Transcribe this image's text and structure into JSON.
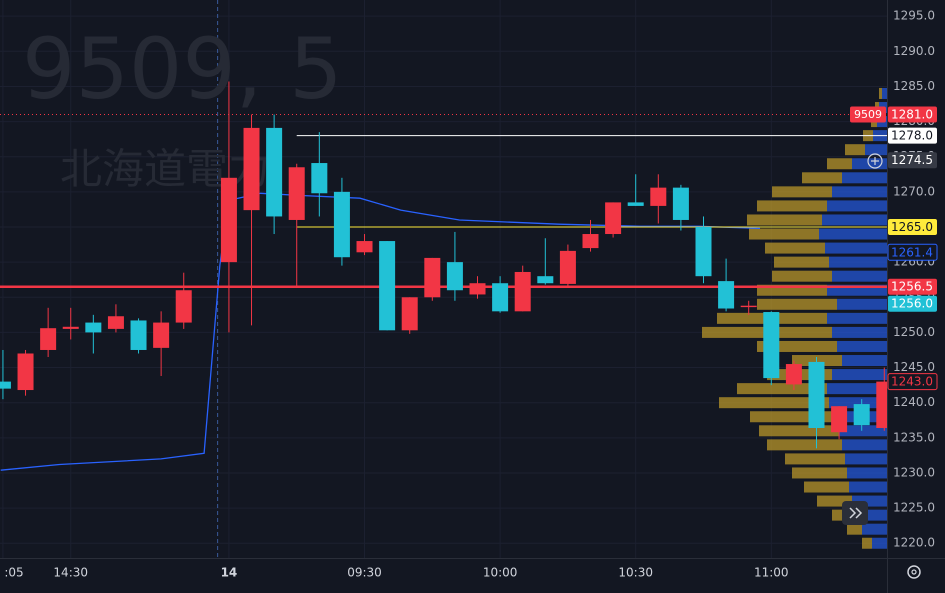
{
  "chart_data": {
    "type": "candlestick",
    "symbol": "9509",
    "watermark": [
      "9509, 5",
      "北海道電力"
    ],
    "xlim": [
      -0.13,
      39.12
    ],
    "ylim": [
      1217.9,
      1297.3
    ],
    "yticks": [
      {
        "value": 1220,
        "label": "1220.0"
      },
      {
        "value": 1225,
        "label": "1225.0"
      },
      {
        "value": 1230,
        "label": "1230.0"
      },
      {
        "value": 1235,
        "label": "1235.0"
      },
      {
        "value": 1240,
        "label": "1240.0"
      },
      {
        "value": 1245,
        "label": "1245.0"
      },
      {
        "value": 1250,
        "label": "1250.0"
      },
      {
        "value": 1255,
        "label": "1255.0"
      },
      {
        "value": 1260,
        "label": "1260.0"
      },
      {
        "value": 1265,
        "label": "1265.0"
      },
      {
        "value": 1270,
        "label": "1270.0"
      },
      {
        "value": 1275,
        "label": "1275.0"
      },
      {
        "value": 1280,
        "label": "1280.0"
      },
      {
        "value": 1285,
        "label": "1285.0"
      },
      {
        "value": 1290,
        "label": "1290.0"
      },
      {
        "value": 1295,
        "label": "1295.0"
      }
    ],
    "xticks": [
      {
        "value": 0,
        "label": ":05"
      },
      {
        "value": 3,
        "label": "14:30"
      },
      {
        "value": 10,
        "label": "14"
      },
      {
        "value": 16,
        "label": "09:30"
      },
      {
        "value": 22,
        "label": "10:00"
      },
      {
        "value": 28,
        "label": "10:30"
      },
      {
        "value": 34,
        "label": "11:00"
      }
    ],
    "session_break": 9.5,
    "grid": true,
    "up_color": "#f23645",
    "down_color": "#22c1d6",
    "candles": {
      "x": [
        0,
        1,
        2,
        3,
        4,
        5,
        6,
        7,
        8,
        10,
        11,
        12,
        13,
        14,
        15,
        16,
        17,
        18,
        19,
        20,
        21,
        22,
        23,
        24,
        25,
        26,
        27,
        28,
        29,
        30,
        31,
        32,
        33,
        34,
        35,
        36,
        37,
        38,
        39
      ],
      "open": [
        1243,
        1241.8,
        1247.5,
        1250.5,
        1251.4,
        1250.5,
        1251.7,
        1247.8,
        1251.4,
        1260,
        1267.4,
        1279.1,
        1266,
        1274.1,
        1270,
        1261.4,
        1263,
        1250.3,
        1255,
        1260,
        1255.4,
        1257,
        1253,
        1258,
        1256.9,
        1262,
        1264,
        1268.5,
        1268,
        1270.6,
        1265,
        1257.3,
        1253.6,
        1252.9,
        1242.6,
        1245.8,
        1235.8,
        1239.8,
        1236.4
      ],
      "high": [
        1247.5,
        1247.5,
        1253.5,
        1253.5,
        1252.5,
        1254,
        1252,
        1253,
        1258.5,
        1285.7,
        1281,
        1281,
        1274,
        1278.5,
        1272,
        1264,
        1263,
        1255,
        1260.6,
        1264.3,
        1258,
        1258,
        1259.5,
        1263.4,
        1262.5,
        1266,
        1268.5,
        1272.5,
        1272.5,
        1271,
        1266.5,
        1260.5,
        1254.5,
        1253,
        1246,
        1246.5,
        1239.5,
        1240.5,
        1245
      ],
      "low": [
        1240.5,
        1241,
        1246.5,
        1249,
        1247,
        1250,
        1247,
        1243.8,
        1250.5,
        1250,
        1251,
        1264,
        1256.5,
        1266.5,
        1259.5,
        1261,
        1250.3,
        1249.8,
        1254.5,
        1254.5,
        1254.8,
        1252.8,
        1253,
        1256.8,
        1256.5,
        1261.5,
        1263.5,
        1268,
        1265.5,
        1264.5,
        1257,
        1253,
        1252.5,
        1242.5,
        1241.8,
        1233.5,
        1234.8,
        1236,
        1236
      ],
      "close": [
        1242,
        1247,
        1250.6,
        1250.8,
        1250,
        1252.3,
        1247.5,
        1251.4,
        1256,
        1272,
        1279.1,
        1266.5,
        1273.5,
        1269.8,
        1260.7,
        1263,
        1250.3,
        1255,
        1260.6,
        1256,
        1257,
        1253,
        1258.6,
        1257,
        1261.6,
        1264,
        1268.5,
        1268,
        1270.6,
        1266,
        1258,
        1253.4,
        1253.8,
        1243.5,
        1245.5,
        1236.4,
        1239.5,
        1236.8,
        1243
      ]
    },
    "moving_average": {
      "color": "#2962ff",
      "x": [
        -0.1,
        2.5,
        7,
        8.9,
        9.6,
        10,
        11.4,
        13.1,
        15.8,
        17.6,
        20.2,
        24.6,
        28.2,
        30.8,
        33.5
      ],
      "values": [
        1230.4,
        1231.2,
        1232,
        1232.8,
        1259.6,
        1268.8,
        1269.8,
        1269.5,
        1269.1,
        1267.4,
        1266,
        1265.4,
        1265.1,
        1265.1,
        1264.8
      ]
    },
    "volume_profile": {
      "up_color": "#2457d6",
      "down_color": "#b8962a",
      "prices": [
        1284,
        1282,
        1280,
        1278,
        1276,
        1274,
        1272,
        1270,
        1268,
        1266,
        1264,
        1262,
        1260,
        1258,
        1256,
        1254,
        1252,
        1250,
        1248,
        1246,
        1244,
        1242,
        1240,
        1238,
        1236,
        1234,
        1232,
        1230,
        1228,
        1226,
        1224,
        1222,
        1220
      ],
      "up": [
        5,
        8,
        10,
        14,
        22,
        35,
        45,
        55,
        60,
        65,
        68,
        62,
        58,
        55,
        60,
        50,
        60,
        55,
        50,
        45,
        55,
        60,
        58,
        52,
        48,
        45,
        42,
        40,
        38,
        35,
        30,
        25,
        15
      ],
      "down": [
        3,
        4,
        6,
        10,
        20,
        25,
        40,
        60,
        70,
        75,
        70,
        60,
        55,
        60,
        70,
        80,
        110,
        130,
        80,
        50,
        65,
        90,
        110,
        85,
        80,
        75,
        60,
        55,
        45,
        35,
        25,
        15,
        10
      ]
    },
    "price_lines": [
      {
        "value": 1281,
        "label": "1281.0",
        "color": "#f23645",
        "text_color": "#ffffff",
        "line": "dotted",
        "badge": "filled"
      },
      {
        "value": 1278,
        "label": "1278.0",
        "color": "#ffffff",
        "text_color": "#131722",
        "line": "solid",
        "x_start": 13,
        "badge": "filled"
      },
      {
        "value": 1274.5,
        "label": "1274.5",
        "color": "#363a45",
        "text_color": "#ffffff",
        "line": "none",
        "badge": "filled"
      },
      {
        "value": 1265,
        "label": "1265.0",
        "color": "#ffeb3b",
        "text_color": "#131722",
        "line": "solid",
        "x_start": 13,
        "badge": "filled"
      },
      {
        "value": 1261.4,
        "label": "1261.4",
        "color": "#2962ff",
        "text_color": "#2962ff",
        "line": "none",
        "badge": "outline"
      },
      {
        "value": 1256.5,
        "label": "1256.5",
        "color": "#f23645",
        "text_color": "#ffffff",
        "line": "thick",
        "badge": "filled"
      },
      {
        "value": 1256,
        "label": "1256.0",
        "color": "#22c1d6",
        "text_color": "#ffffff",
        "line": "none",
        "badge": "filled"
      },
      {
        "value": 1243,
        "label": "1243.0",
        "color": "#f23645",
        "text_color": "#f23645",
        "line": "none",
        "badge": "outline"
      }
    ]
  }
}
